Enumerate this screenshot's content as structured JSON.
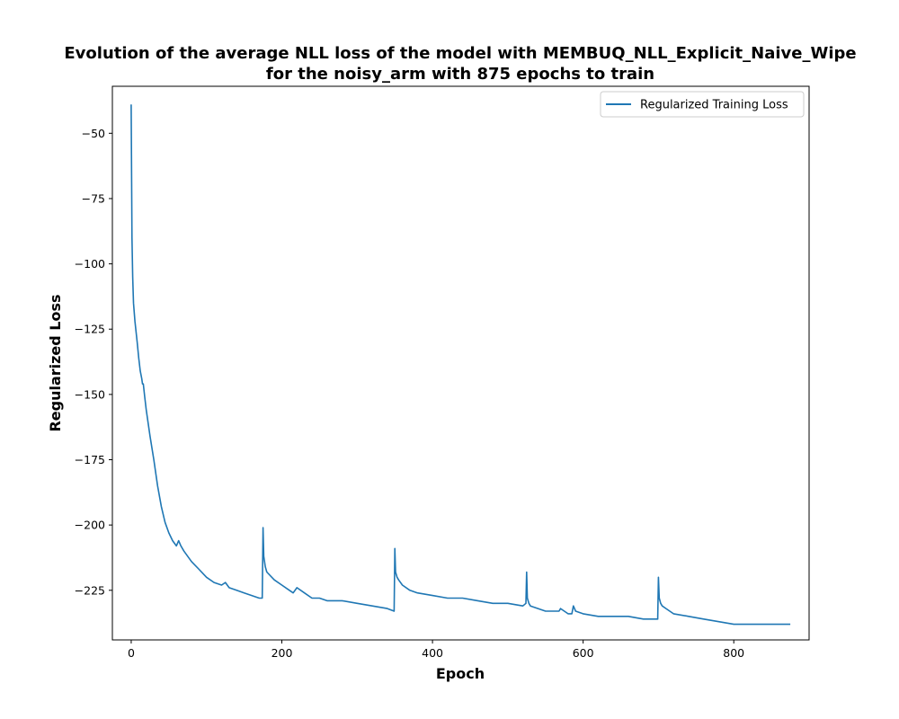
{
  "chart_data": {
    "type": "line",
    "title_line1": "Evolution of the average NLL loss of the model with MEMBUQ_NLL_Explicit_Naive_Wipe",
    "title_line2": "for the noisy_arm with 875 epochs to train",
    "xlabel": "Epoch",
    "ylabel": "Regularized Loss",
    "xlim": [
      -25,
      900
    ],
    "ylim": [
      -244,
      -32
    ],
    "xticks": [
      0,
      200,
      400,
      600,
      800
    ],
    "yticks": [
      -50,
      -75,
      -100,
      -125,
      -150,
      -175,
      -200,
      -225
    ],
    "grid": false,
    "legend_position": "top-right",
    "series": [
      {
        "name": "Regularized Training Loss",
        "color": "#1f77b4",
        "x": [
          0,
          1,
          2,
          3,
          5,
          8,
          10,
          12,
          14,
          15,
          16,
          18,
          20,
          25,
          30,
          35,
          40,
          45,
          50,
          55,
          60,
          63,
          66,
          70,
          80,
          90,
          100,
          110,
          120,
          125,
          130,
          140,
          150,
          160,
          170,
          174,
          175,
          176,
          178,
          180,
          190,
          200,
          210,
          215,
          220,
          230,
          240,
          250,
          260,
          280,
          300,
          320,
          340,
          349,
          350,
          351,
          353,
          355,
          360,
          370,
          380,
          400,
          420,
          440,
          460,
          480,
          500,
          520,
          524,
          525,
          526,
          528,
          530,
          540,
          550,
          560,
          568,
          570,
          580,
          585,
          587,
          590,
          600,
          620,
          640,
          660,
          680,
          699,
          700,
          701,
          703,
          705,
          710,
          720,
          740,
          760,
          780,
          800,
          820,
          840,
          860,
          875
        ],
        "y": [
          -39,
          -90,
          -105,
          -115,
          -122,
          -130,
          -136,
          -141,
          -144,
          -146,
          -146,
          -151,
          -156,
          -166,
          -175,
          -185,
          -193,
          -199,
          -203,
          -206,
          -208,
          -206,
          -208,
          -210,
          -214,
          -217,
          -220,
          -222,
          -223,
          -222,
          -224,
          -225,
          -226,
          -227,
          -228,
          -228,
          -201,
          -212,
          -216,
          -218,
          -221,
          -223,
          -225,
          -226,
          -224,
          -226,
          -228,
          -228,
          -229,
          -229,
          -230,
          -231,
          -232,
          -233,
          -209,
          -218,
          -220,
          -221,
          -223,
          -225,
          -226,
          -227,
          -228,
          -228,
          -229,
          -230,
          -230,
          -231,
          -230,
          -218,
          -228,
          -230,
          -231,
          -232,
          -233,
          -233,
          -233,
          -232,
          -234,
          -234,
          -231,
          -233,
          -234,
          -235,
          -235,
          -235,
          -236,
          -236,
          -220,
          -228,
          -230,
          -231,
          -232,
          -234,
          -235,
          -236,
          -237,
          -238,
          -238,
          -238,
          -238,
          -238
        ]
      }
    ]
  }
}
